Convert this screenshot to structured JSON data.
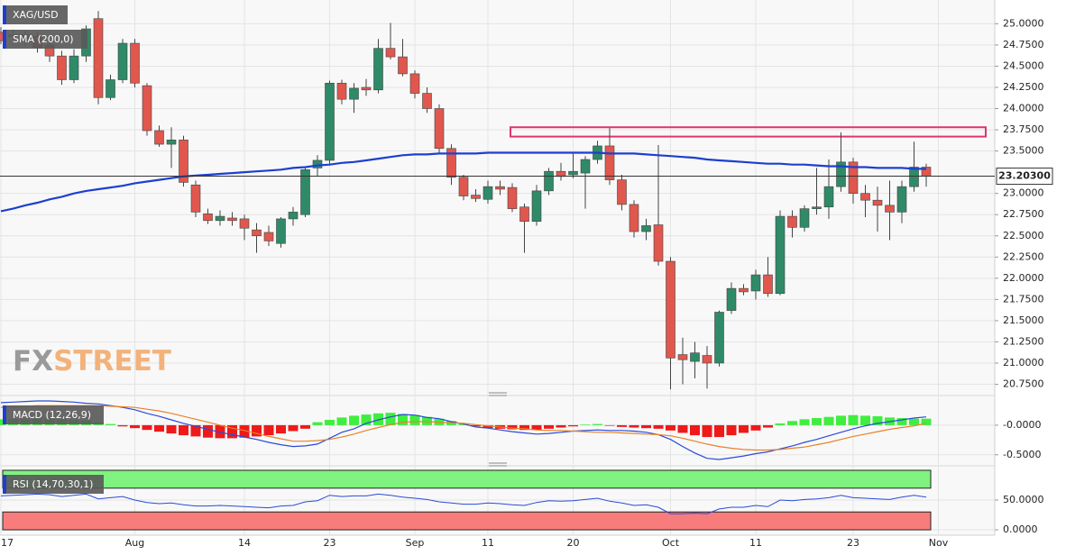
{
  "chart_data": [
    {
      "type": "candlestick",
      "title": "XAG/USD",
      "categories": [
        "17",
        null,
        null,
        null,
        null,
        null,
        null,
        null,
        null,
        null,
        null,
        "Aug",
        null,
        null,
        null,
        null,
        null,
        null,
        null,
        null,
        "14",
        null,
        null,
        null,
        null,
        null,
        null,
        "23",
        null,
        null,
        null,
        null,
        null,
        null,
        "Sep",
        null,
        null,
        null,
        null,
        null,
        "11",
        null,
        null,
        null,
        null,
        null,
        null,
        "20",
        null,
        null,
        null,
        null,
        null,
        null,
        null,
        "Oct",
        null,
        null,
        null,
        null,
        null,
        null,
        "11",
        null,
        null,
        null,
        null,
        null,
        null,
        null,
        "23",
        null,
        null,
        null,
        null,
        null,
        null,
        "Nov"
      ],
      "open": [
        24.9,
        24.87,
        24.8,
        24.85,
        24.75,
        24.62,
        24.34,
        24.62,
        25.06,
        24.13,
        24.34,
        24.77,
        24.27,
        23.74,
        23.58,
        23.63,
        23.1,
        22.76,
        22.68,
        22.71,
        22.7,
        22.57,
        22.54,
        22.41,
        22.7,
        22.75,
        23.3,
        23.39,
        24.3,
        24.11,
        24.25,
        24.22,
        24.71,
        24.61,
        24.41,
        24.18,
        24.0,
        23.53,
        23.19,
        22.98,
        22.93,
        23.08,
        23.07,
        22.84,
        22.67,
        23.03,
        23.26,
        23.22,
        23.24,
        23.4,
        23.56,
        23.16,
        22.87,
        22.55,
        22.63,
        22.2,
        21.1,
        21.02,
        21.09,
        21.0,
        21.62,
        21.88,
        21.85,
        22.04,
        21.82,
        22.73,
        22.6,
        22.82,
        22.84,
        23.08,
        23.37,
        23.0,
        22.92,
        22.86,
        22.78,
        23.08,
        23.31,
        null
      ],
      "high": [
        24.96,
        24.93,
        24.92,
        24.9,
        24.8,
        24.68,
        24.7,
        24.98,
        25.15,
        24.4,
        24.82,
        24.82,
        24.3,
        23.8,
        23.78,
        23.68,
        23.15,
        22.82,
        22.8,
        22.78,
        22.75,
        22.65,
        22.62,
        22.72,
        22.84,
        23.32,
        23.45,
        24.33,
        24.34,
        24.3,
        24.35,
        24.82,
        25.01,
        24.82,
        24.45,
        24.25,
        24.05,
        23.58,
        23.22,
        23.05,
        23.15,
        23.15,
        23.12,
        22.88,
        23.1,
        23.3,
        23.36,
        23.48,
        23.44,
        23.62,
        23.77,
        23.22,
        22.92,
        22.7,
        23.57,
        22.25,
        21.3,
        21.25,
        21.2,
        21.62,
        21.95,
        21.93,
        22.1,
        22.25,
        22.8,
        22.8,
        22.86,
        23.3,
        23.4,
        23.72,
        23.42,
        23.1,
        23.08,
        23.15,
        23.15,
        23.61,
        23.35,
        null
      ],
      "low": [
        24.76,
        24.8,
        24.74,
        24.66,
        24.55,
        24.28,
        24.3,
        24.55,
        24.05,
        24.1,
        24.3,
        24.25,
        23.68,
        23.55,
        23.3,
        23.08,
        22.72,
        22.64,
        22.62,
        22.62,
        22.45,
        22.3,
        22.38,
        22.36,
        22.62,
        22.72,
        23.2,
        23.35,
        24.05,
        23.95,
        24.15,
        24.18,
        24.58,
        24.38,
        24.12,
        23.95,
        23.48,
        23.1,
        22.92,
        22.9,
        22.88,
        22.98,
        22.78,
        22.3,
        22.62,
        22.98,
        23.15,
        23.18,
        22.82,
        23.35,
        23.1,
        22.8,
        22.48,
        22.45,
        22.15,
        20.69,
        20.75,
        20.82,
        20.7,
        20.96,
        21.58,
        21.8,
        21.75,
        21.78,
        21.8,
        22.48,
        22.55,
        22.75,
        22.7,
        23.02,
        22.88,
        22.72,
        22.55,
        22.45,
        22.65,
        23.02,
        23.08,
        null
      ],
      "close": [
        24.8,
        24.85,
        24.87,
        24.72,
        24.62,
        24.34,
        24.62,
        24.94,
        24.13,
        24.34,
        24.77,
        24.3,
        23.74,
        23.58,
        23.63,
        23.13,
        22.78,
        22.68,
        22.73,
        22.68,
        22.59,
        22.5,
        22.44,
        22.7,
        22.78,
        23.28,
        23.39,
        24.3,
        24.11,
        24.24,
        24.22,
        24.71,
        24.61,
        24.41,
        24.18,
        24.0,
        23.53,
        23.19,
        22.97,
        22.94,
        23.08,
        23.05,
        22.82,
        22.67,
        23.03,
        23.26,
        23.2,
        23.26,
        23.4,
        23.56,
        23.16,
        22.87,
        22.55,
        22.62,
        22.2,
        21.06,
        21.04,
        21.12,
        21.0,
        21.6,
        21.88,
        21.84,
        22.04,
        21.82,
        22.73,
        22.6,
        22.82,
        22.84,
        23.08,
        23.37,
        23.0,
        22.92,
        22.86,
        22.78,
        23.08,
        23.31,
        23.203,
        null
      ],
      "colors": {
        "up": "#2f8a68",
        "down": "#e0574e"
      },
      "series": [
        {
          "name": "SMA (200,0)",
          "color": "#1d3fd0",
          "values": [
            22.79,
            22.82,
            22.86,
            22.89,
            22.93,
            22.96,
            23.0,
            23.03,
            23.05,
            23.07,
            23.09,
            23.12,
            23.14,
            23.16,
            23.18,
            23.2,
            23.21,
            23.22,
            23.23,
            23.24,
            23.25,
            23.26,
            23.27,
            23.28,
            23.3,
            23.31,
            23.33,
            23.34,
            23.36,
            23.37,
            23.39,
            23.41,
            23.43,
            23.45,
            23.46,
            23.46,
            23.47,
            23.47,
            23.47,
            23.47,
            23.48,
            23.48,
            23.48,
            23.48,
            23.48,
            23.48,
            23.48,
            23.48,
            23.48,
            23.48,
            23.47,
            23.47,
            23.47,
            23.46,
            23.45,
            23.44,
            23.43,
            23.42,
            23.4,
            23.39,
            23.38,
            23.37,
            23.36,
            23.35,
            23.35,
            23.34,
            23.34,
            23.33,
            23.32,
            23.32,
            23.31,
            23.31,
            23.3,
            23.3,
            23.3,
            23.29,
            23.29,
            null
          ]
        }
      ],
      "ylim": [
        20.66,
        25.28
      ],
      "yticks": [
        {
          "value": 25,
          "label": "25.0000"
        },
        {
          "value": 24.75,
          "label": "24.7500"
        },
        {
          "value": 24.5,
          "label": "24.5000"
        },
        {
          "value": 24.25,
          "label": "24.2500"
        },
        {
          "value": 24,
          "label": "24.0000"
        },
        {
          "value": 23.75,
          "label": "23.7500"
        },
        {
          "value": 23.5,
          "label": "23.5000"
        },
        {
          "value": 23,
          "label": "23.0000"
        },
        {
          "value": 22.75,
          "label": "22.7500"
        },
        {
          "value": 22.5,
          "label": "22.5000"
        },
        {
          "value": 22.25,
          "label": "22.2500"
        },
        {
          "value": 22,
          "label": "22.0000"
        },
        {
          "value": 21.75,
          "label": "21.7500"
        },
        {
          "value": 21.5,
          "label": "21.5000"
        },
        {
          "value": 21.25,
          "label": "21.2500"
        },
        {
          "value": 21,
          "label": "21.0000"
        },
        {
          "value": 20.75,
          "label": "20.7500"
        }
      ],
      "last_price": {
        "value": 23.203,
        "label": "23.20300"
      },
      "zone": [
        23.67,
        23.78
      ],
      "zone_color": "#e0336f",
      "watermark": [
        "FX",
        "STREET"
      ],
      "grid": true
    },
    {
      "type": "macd",
      "title": "MACD (12,26,9)",
      "ylim": [
        -0.61,
        0.44
      ],
      "yticks": [
        {
          "value": 0,
          "label": "-0.0000"
        },
        {
          "value": -0.5,
          "label": "-0.5000"
        }
      ],
      "bars": {
        "colors": {
          "up": "#3fee3f",
          "down": "#ee1a1a"
        },
        "values": [
          0.1,
          0.1,
          0.1,
          0.11,
          0.11,
          0.1,
          0.09,
          0.08,
          0.05,
          0.02,
          -0.02,
          -0.05,
          -0.08,
          -0.11,
          -0.14,
          -0.17,
          -0.19,
          -0.21,
          -0.22,
          -0.22,
          -0.21,
          -0.19,
          -0.17,
          -0.14,
          -0.1,
          -0.06,
          0.05,
          0.09,
          0.13,
          0.16,
          0.18,
          0.2,
          0.21,
          0.19,
          0.17,
          0.14,
          0.11,
          0.07,
          0.03,
          -0.02,
          -0.05,
          -0.06,
          -0.07,
          -0.08,
          -0.08,
          -0.06,
          -0.04,
          -0.02,
          0.01,
          0.02,
          -0.01,
          -0.03,
          -0.04,
          -0.05,
          -0.06,
          -0.09,
          -0.13,
          -0.17,
          -0.2,
          -0.2,
          -0.17,
          -0.13,
          -0.09,
          -0.04,
          0.03,
          0.07,
          0.1,
          0.12,
          0.14,
          0.16,
          0.17,
          0.16,
          0.15,
          0.13,
          0.12,
          0.11,
          0.11,
          null
        ]
      },
      "lines": [
        {
          "color": "#2a4bd7",
          "values": [
            0.38,
            0.39,
            0.4,
            0.41,
            0.41,
            0.4,
            0.39,
            0.37,
            0.36,
            0.33,
            0.3,
            0.26,
            0.2,
            0.15,
            0.09,
            0.03,
            -0.02,
            -0.07,
            -0.12,
            -0.16,
            -0.2,
            -0.24,
            -0.29,
            -0.33,
            -0.36,
            -0.35,
            -0.32,
            -0.22,
            -0.12,
            -0.06,
            0.03,
            0.09,
            0.14,
            0.18,
            0.17,
            0.13,
            0.11,
            0.06,
            0.02,
            -0.03,
            -0.05,
            -0.08,
            -0.11,
            -0.13,
            -0.15,
            -0.14,
            -0.12,
            -0.1,
            -0.09,
            -0.08,
            -0.09,
            -0.09,
            -0.1,
            -0.12,
            -0.16,
            -0.24,
            -0.36,
            -0.47,
            -0.56,
            -0.58,
            -0.55,
            -0.52,
            -0.48,
            -0.45,
            -0.4,
            -0.35,
            -0.29,
            -0.24,
            -0.18,
            -0.12,
            -0.06,
            -0.01,
            0.03,
            0.06,
            0.09,
            0.12,
            0.14,
            null
          ]
        },
        {
          "color": "#e8822a",
          "values": [
            0.3,
            0.31,
            0.32,
            0.33,
            0.33,
            0.33,
            0.33,
            0.33,
            0.33,
            0.32,
            0.31,
            0.3,
            0.27,
            0.24,
            0.2,
            0.15,
            0.1,
            0.05,
            0.0,
            -0.05,
            -0.09,
            -0.14,
            -0.19,
            -0.23,
            -0.27,
            -0.27,
            -0.26,
            -0.24,
            -0.2,
            -0.15,
            -0.09,
            -0.04,
            0.01,
            0.05,
            0.06,
            0.06,
            0.05,
            0.04,
            0.03,
            0.01,
            -0.01,
            -0.03,
            -0.05,
            -0.06,
            -0.08,
            -0.09,
            -0.09,
            -0.1,
            -0.11,
            -0.12,
            -0.12,
            -0.13,
            -0.14,
            -0.15,
            -0.16,
            -0.18,
            -0.22,
            -0.27,
            -0.32,
            -0.36,
            -0.39,
            -0.41,
            -0.42,
            -0.42,
            -0.41,
            -0.39,
            -0.37,
            -0.33,
            -0.29,
            -0.24,
            -0.19,
            -0.15,
            -0.11,
            -0.07,
            -0.04,
            -0.01,
            0.03,
            null
          ]
        }
      ]
    },
    {
      "type": "rsi",
      "title": "RSI (14,70,30,1)",
      "ylim": [
        -9,
        101.5
      ],
      "yticks": [
        {
          "value": 50,
          "label": "50.0000"
        },
        {
          "value": 0,
          "label": "0.0000"
        }
      ],
      "bands": [
        {
          "range": [
            70,
            100
          ],
          "color": "#7ff27f"
        },
        {
          "range": [
            0,
            30
          ],
          "color": "#f87c7c"
        }
      ],
      "color": "#2a4bd7",
      "values": [
        57,
        58,
        59,
        60,
        59,
        56,
        58,
        60,
        52,
        54,
        56,
        50,
        46,
        44,
        45,
        42,
        40,
        40,
        41,
        40,
        39,
        38,
        37,
        40,
        41,
        47,
        49,
        58,
        56,
        57,
        57,
        60,
        58,
        55,
        53,
        51,
        47,
        45,
        43,
        43,
        45,
        44,
        42,
        41,
        46,
        49,
        48,
        49,
        51,
        53,
        48,
        45,
        41,
        42,
        38,
        27,
        27,
        28,
        27,
        35,
        38,
        38,
        41,
        39,
        50,
        49,
        51,
        52,
        54,
        58,
        54,
        53,
        52,
        51,
        55,
        58,
        55,
        null
      ]
    }
  ]
}
